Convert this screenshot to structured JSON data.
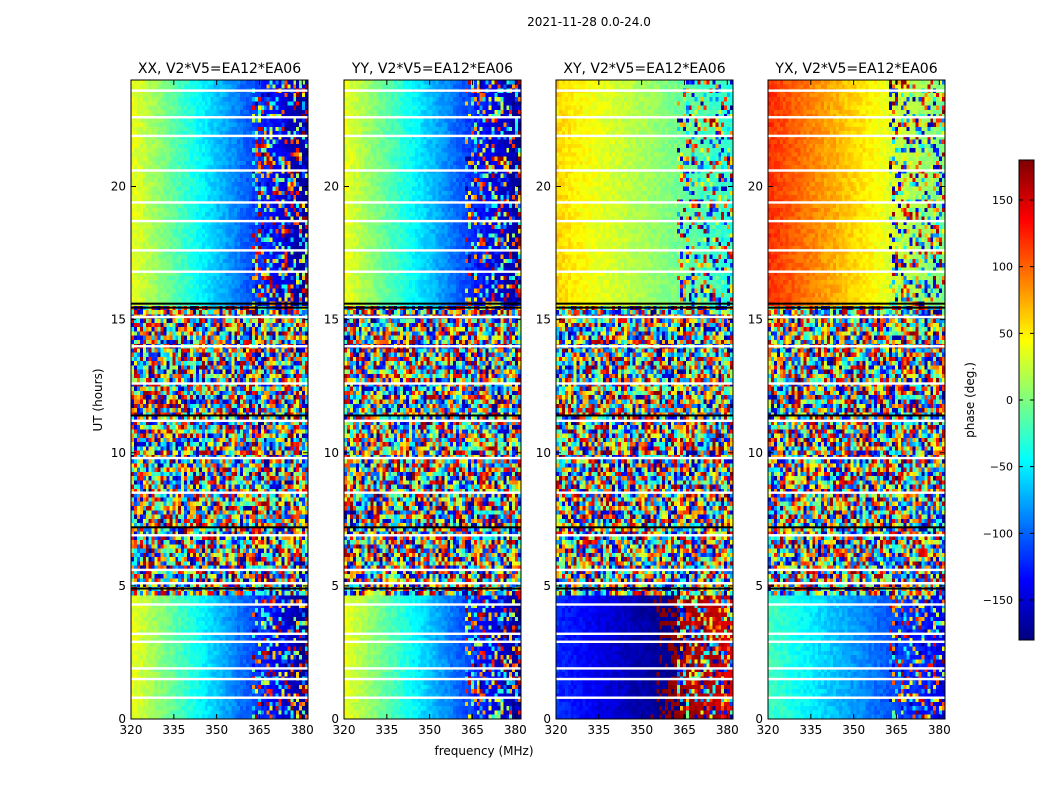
{
  "figure": {
    "suptitle": "2021-11-28 0.0-24.0"
  },
  "chart_data": {
    "type": "heatmap",
    "xlabel": "frequency (MHz)",
    "ylabel": "UT (hours)",
    "xlim": [
      320,
      382
    ],
    "ylim": [
      0,
      24
    ],
    "xticks": [
      320,
      335,
      350,
      365,
      380
    ],
    "yticks": [
      0,
      5,
      10,
      15,
      20
    ],
    "colorbar": {
      "label": "phase (deg.)",
      "range": [
        -180,
        180
      ],
      "ticks": [
        150,
        100,
        50,
        0,
        -50,
        -100,
        -150
      ],
      "tick_labels": [
        "150",
        "100",
        "50",
        "0",
        "−50",
        "−100",
        "−150"
      ],
      "colormap": [
        "#00007f",
        "#0000ff",
        "#007fff",
        "#00ffff",
        "#7fff7f",
        "#ffff00",
        "#ff7f00",
        "#ff0000",
        "#7f0000"
      ]
    },
    "panels": [
      {
        "title": "XX, V2*V5=EA12*EA06",
        "phase_start": 40,
        "phase_slope": -3.5,
        "noisy_col_from": 362,
        "quiet_late_shift": 0
      },
      {
        "title": "YY, V2*V5=EA12*EA06",
        "phase_start": 40,
        "phase_slope": -3.5,
        "noisy_col_from": 362,
        "quiet_late_shift": 0
      },
      {
        "title": "XY, V2*V5=EA12*EA06",
        "phase_start": -120,
        "phase_slope": -1.5,
        "noisy_col_from": 362,
        "quiet_late_shift": 180
      },
      {
        "title": "YX, V2*V5=EA12*EA06",
        "phase_start": -20,
        "phase_slope": -2.0,
        "noisy_col_from": 362,
        "quiet_late_shift": 140
      }
    ],
    "noise_band_hours": [
      4.6,
      15.5
    ],
    "white_gap_hours": [
      0.8,
      1.5,
      1.9,
      2.9,
      3.2,
      4.3,
      5.1,
      5.6,
      6.9,
      8.5,
      9.8,
      11.2,
      12.6,
      14.0,
      15.1,
      16.8,
      17.6,
      18.7,
      19.4,
      20.6,
      21.9,
      22.6,
      23.6
    ],
    "black_gap_hours": [
      4.9,
      7.2,
      11.4,
      15.45,
      15.6
    ]
  }
}
